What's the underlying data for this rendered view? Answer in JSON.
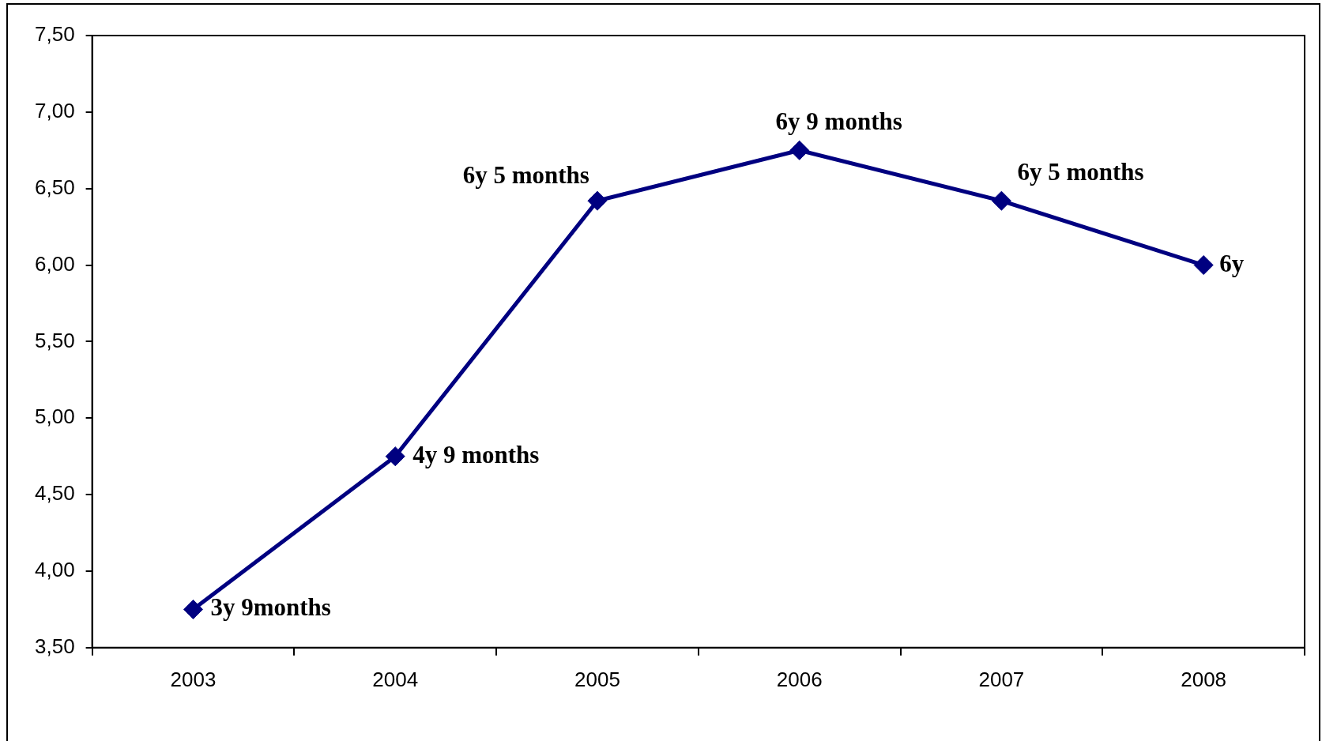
{
  "chart_data": {
    "type": "line",
    "categories": [
      "2003",
      "2004",
      "2005",
      "2006",
      "2007",
      "2008"
    ],
    "series": [
      {
        "color": "#000080",
        "values": [
          3.75,
          4.75,
          6.42,
          6.75,
          6.42,
          6.0
        ]
      }
    ],
    "value_labels": [
      "3y 9months",
      "4y 9 months",
      "6y 5 months",
      "6y 9 months",
      "6y 5 months",
      "6y"
    ],
    "ylim": [
      3.5,
      7.5
    ],
    "yticks": [
      {
        "value": 3.5,
        "label": "3,50"
      },
      {
        "value": 4,
        "label": "4,00"
      },
      {
        "value": 4.5,
        "label": "4,50"
      },
      {
        "value": 5,
        "label": "5,00"
      },
      {
        "value": 5.5,
        "label": "5,50"
      },
      {
        "value": 6,
        "label": "6,00"
      },
      {
        "value": 6.5,
        "label": "6,50"
      },
      {
        "value": 7,
        "label": "7,00"
      },
      {
        "value": 7.5,
        "label": "7,50"
      }
    ],
    "grid": false,
    "legend": false,
    "marker": "diamond",
    "line_style": "solid"
  }
}
